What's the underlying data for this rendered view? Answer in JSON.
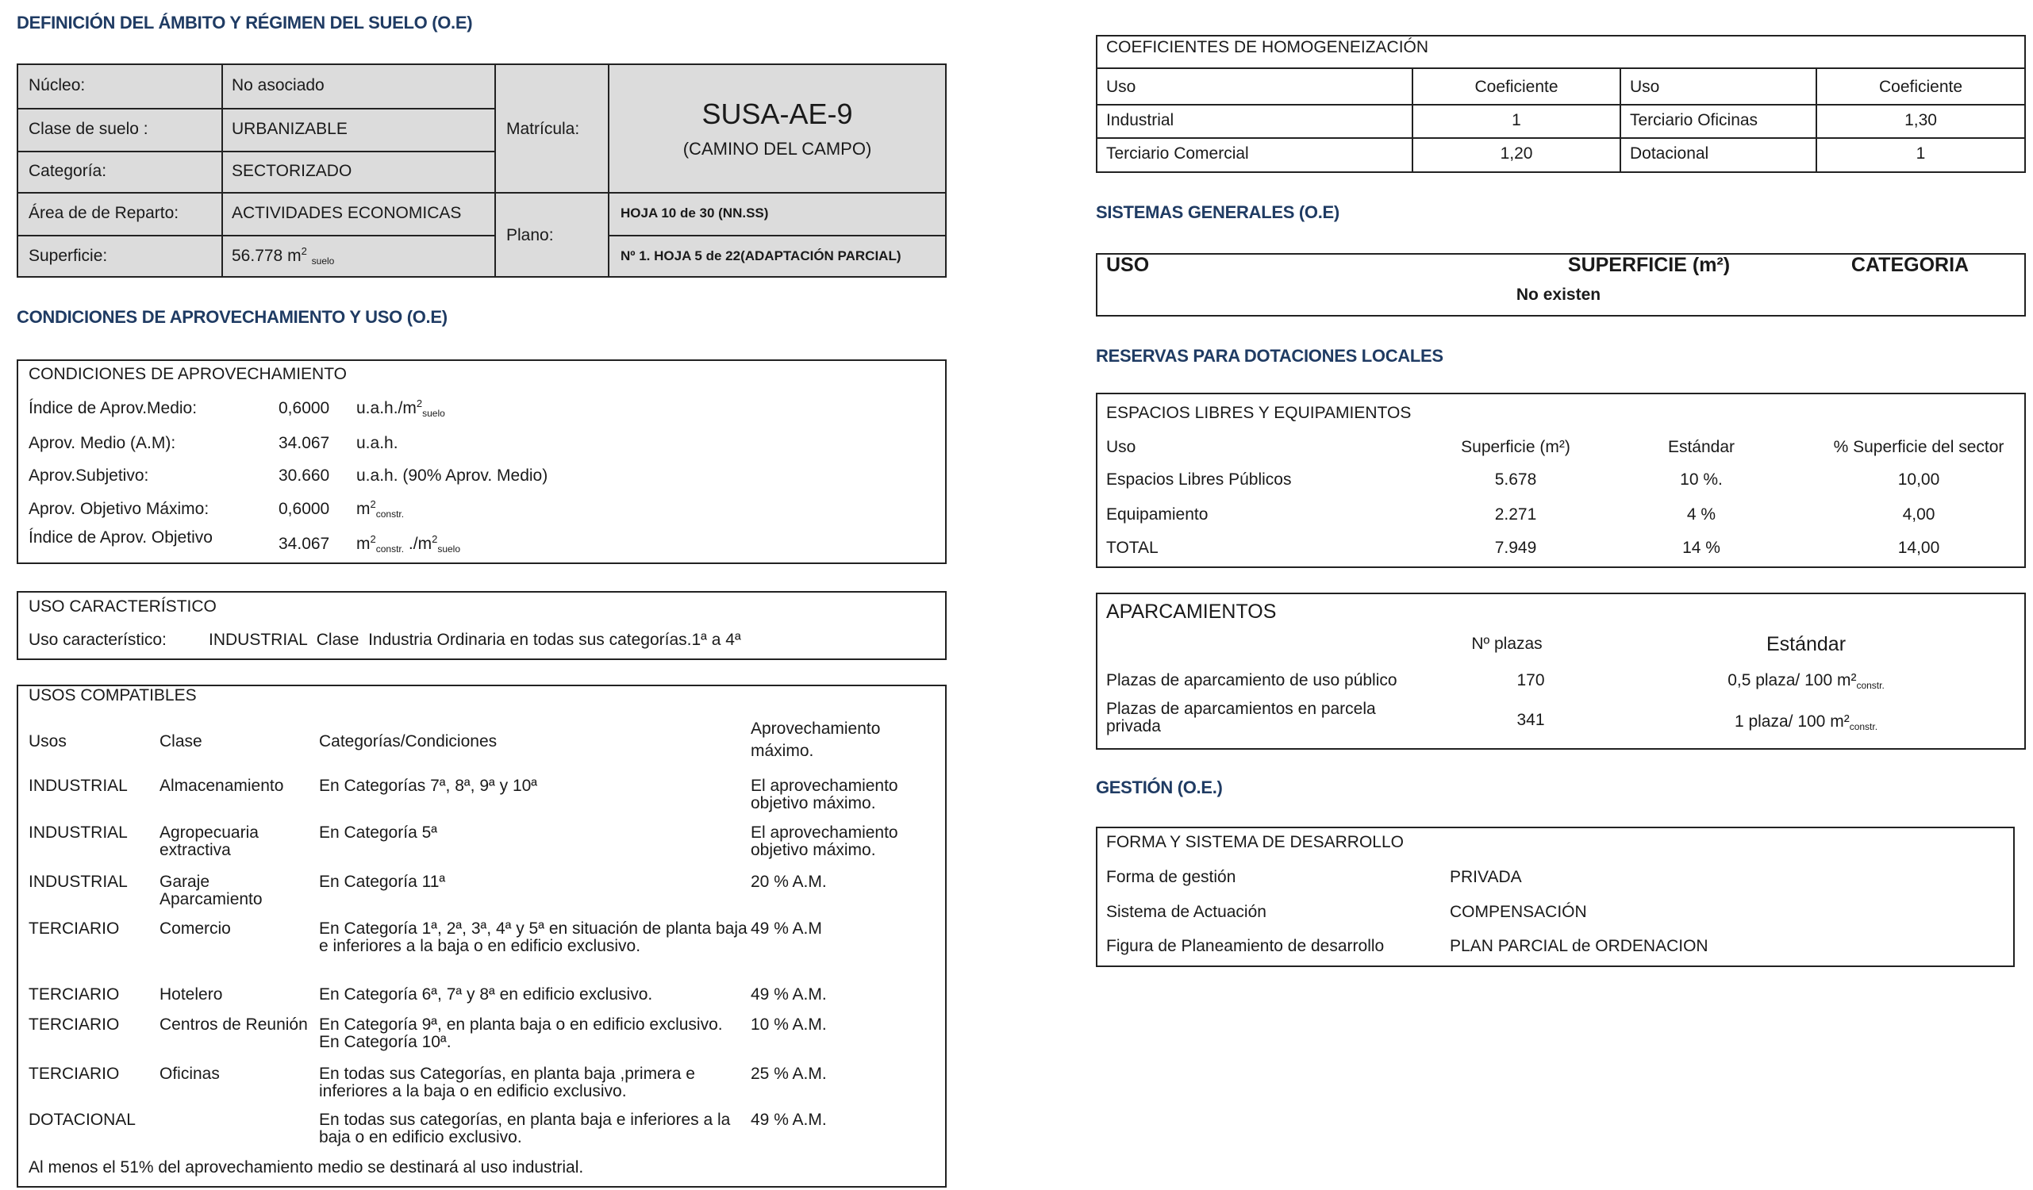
{
  "sections": {
    "definicion": "DEFINICIÓN DEL ÁMBITO Y RÉGIMEN DEL SUELO (O.E)",
    "condiciones": "CONDICIONES DE APROVECHAMIENTO Y USO (O.E)",
    "sistemas": "SISTEMAS GENERALES (O.E)",
    "reservas": "RESERVAS PARA DOTACIONES LOCALES",
    "gestion": "GESTIÓN (O.E.)"
  },
  "ambito": {
    "rows": [
      {
        "label": "Núcleo:",
        "value": "No asociado"
      },
      {
        "label": "Clase de suelo :",
        "value": "URBANIZABLE"
      },
      {
        "label": "Categoría:",
        "value": "SECTORIZADO"
      },
      {
        "label": "Área de de Reparto:",
        "value": "ACTIVIDADES ECONOMICAS"
      },
      {
        "label": "Superficie:",
        "value": "56.778 m",
        "sup": "2",
        "sub": "suelo"
      }
    ],
    "matricula_label": "Matrícula:",
    "matricula": "SUSA-AE-9",
    "matricula_name": "(CAMINO DEL CAMPO)",
    "plano_label": "Plano:",
    "plano_1": "HOJA 10 de 30 (NN.SS)",
    "plano_2": "Nº 1. HOJA 5 de 22(ADAPTACIÓN PARCIAL)"
  },
  "aprovechamiento": {
    "title": "CONDICIONES DE APROVECHAMIENTO",
    "rows": [
      {
        "label": "Índice de Aprov.Medio:",
        "value": "0,6000",
        "unit": "u.a.h./m",
        "sup": "2",
        "sub": "suelo"
      },
      {
        "label": "Aprov. Medio (A.M):",
        "value": "34.067",
        "unit": "u.a.h."
      },
      {
        "label": "Aprov.Subjetivo:",
        "value": "30.660",
        "unit": "u.a.h. (90% Aprov. Medio)"
      },
      {
        "label": "Aprov. Objetivo Máximo:",
        "value": "0,6000",
        "unit": "m",
        "sup": "2",
        "sub": "constr."
      },
      {
        "label": "Índice de Aprov. Objetivo",
        "value": "34.067",
        "unit": "m",
        "sup": "2",
        "sub": "constr.",
        "unit2": " ./m",
        "sup2": "2",
        "sub2": "suelo"
      }
    ]
  },
  "uso_caracteristico": {
    "title": "USO CARACTERÍSTICO",
    "label": "Uso característico:",
    "value": "INDUSTRIAL  Clase  Industria Ordinaria en todas sus categorías.1ª a 4ª"
  },
  "usos_compatibles": {
    "title": "USOS COMPATIBLES",
    "headers": [
      "Usos",
      "Clase",
      "Categorías/Condiciones",
      "Aprovechamiento máximo."
    ],
    "rows": [
      {
        "uso": "INDUSTRIAL",
        "clase": "Almacenamiento",
        "cond": "En Categorías 7ª, 8ª, 9ª y 10ª",
        "aprov": "El aprovechamiento objetivo máximo."
      },
      {
        "uso": "INDUSTRIAL",
        "clase": "Agropecuaria extractiva",
        "cond": "En Categoría 5ª",
        "aprov": "El aprovechamiento objetivo máximo."
      },
      {
        "uso": "INDUSTRIAL",
        "clase": "Garaje Aparcamiento",
        "cond": "En Categoría 11ª",
        "aprov": "20 % A.M."
      },
      {
        "uso": "TERCIARIO",
        "clase": "Comercio",
        "cond": "En Categoría 1ª, 2ª, 3ª, 4ª y 5ª en situación de planta baja e inferiores a la baja o en edificio exclusivo.",
        "aprov": "49 % A.M"
      },
      {
        "uso": "TERCIARIO",
        "clase": "Hotelero",
        "cond": "En Categoría 6ª, 7ª y 8ª en edificio exclusivo.",
        "aprov": "49 % A.M."
      },
      {
        "uso": "TERCIARIO",
        "clase": "Centros de Reunión",
        "cond": "En Categoría 9ª, en planta baja o en edificio exclusivo. En Categoría 10ª.",
        "aprov": "10 % A.M."
      },
      {
        "uso": "TERCIARIO",
        "clase": "Oficinas",
        "cond": "En todas sus Categorías, en planta baja ,primera  e inferiores a la baja o en edificio exclusivo.",
        "aprov": "25 % A.M."
      },
      {
        "uso": "DOTACIONAL",
        "clase": "",
        "cond": "En todas sus categorías, en planta baja e inferiores a la baja o en edificio exclusivo.",
        "aprov": "49 % A.M."
      }
    ],
    "footer": "Al menos el 51% del aprovechamiento medio se destinará al uso industrial."
  },
  "coeficientes": {
    "title": "COEFICIENTES DE HOMOGENEIZACIÓN",
    "headers": [
      "Uso",
      "Coeficiente",
      "Uso",
      "Coeficiente"
    ],
    "rows": [
      [
        "Industrial",
        "1",
        "Terciario Oficinas",
        "1,30"
      ],
      [
        "Terciario Comercial",
        "1,20",
        "Dotacional",
        "1"
      ]
    ]
  },
  "sistemas_generales": {
    "headers": [
      "USO",
      "SUPERFICIE (m²)",
      "CATEGORIA"
    ],
    "empty": "No existen"
  },
  "espacios": {
    "title": "ESPACIOS LIBRES Y EQUIPAMIENTOS",
    "headers": [
      "Uso",
      "Superficie (m²)",
      "Estándar",
      "% Superficie del sector"
    ],
    "rows": [
      [
        "Espacios Libres Públicos",
        "5.678",
        "10 %.",
        "10,00"
      ],
      [
        "Equipamiento",
        "2.271",
        "4 %",
        "4,00"
      ],
      [
        "TOTAL",
        "7.949",
        "14 %",
        "14,00"
      ]
    ]
  },
  "aparcamientos": {
    "title": "APARCAMIENTOS",
    "headers": [
      "Nº plazas",
      "Estándar"
    ],
    "rows": [
      {
        "label": "Plazas de aparcamiento de uso público",
        "plazas": "170",
        "std": "0,5 plaza/ 100 m²",
        "sub": "constr."
      },
      {
        "label": "Plazas de aparcamientos en parcela privada",
        "plazas": "341",
        "std": "1 plaza/ 100 m²",
        "sub": "constr."
      }
    ]
  },
  "forma": {
    "title": "FORMA Y SISTEMA DE DESARROLLO",
    "rows": [
      {
        "label": "Forma de gestión",
        "value": "PRIVADA"
      },
      {
        "label": "Sistema de Actuación",
        "value": "COMPENSACIÓN"
      },
      {
        "label": "Figura de Planeamiento de desarrollo",
        "value": "PLAN PARCIAL de ORDENACION"
      }
    ]
  },
  "colors": {
    "heading": "#1f3b63",
    "cell_gray": "#dcdcdc",
    "border": "#222222"
  }
}
